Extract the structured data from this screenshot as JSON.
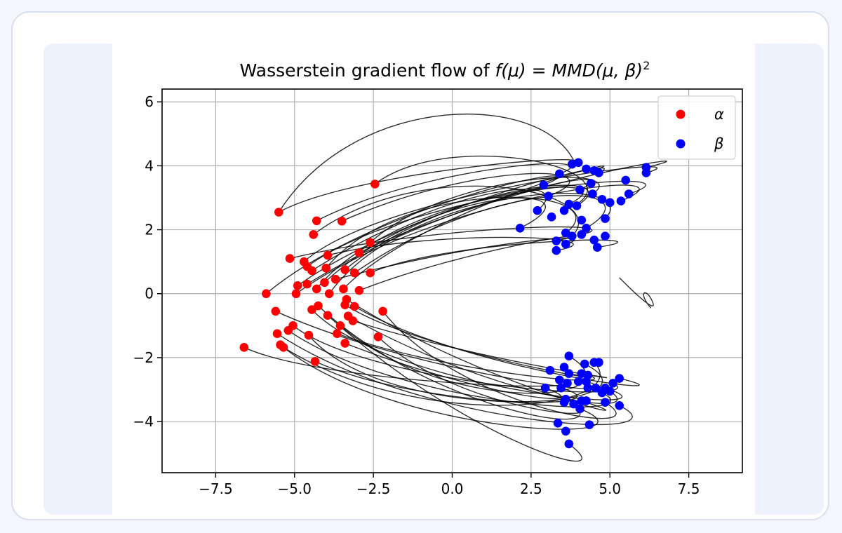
{
  "chart_data": {
    "type": "scatter",
    "title_prefix": "Wasserstein gradient flow of ",
    "title_math": "f(μ) = MMD(μ, β)",
    "title_exponent": "2",
    "xlabel": "",
    "ylabel": "",
    "xlim": [
      -9.2,
      9.2
    ],
    "ylim": [
      -5.6,
      6.4
    ],
    "grid": true,
    "legend_position": "top-right",
    "x_ticks": [
      -7.5,
      -5.0,
      -2.5,
      0.0,
      2.5,
      5.0,
      7.5
    ],
    "x_tick_labels": [
      "−7.5",
      "−5.0",
      "−2.5",
      "0.0",
      "2.5",
      "5.0",
      "7.5"
    ],
    "y_ticks": [
      -4,
      -2,
      0,
      2,
      4,
      6
    ],
    "y_tick_labels": [
      "−4",
      "−2",
      "0",
      "2",
      "4",
      "6"
    ],
    "series": [
      {
        "name": "α",
        "color": "#ff0000",
        "points": [
          [
            -5.5,
            2.55
          ],
          [
            -4.3,
            2.28
          ],
          [
            -3.5,
            2.27
          ],
          [
            -2.45,
            3.43
          ],
          [
            -4.4,
            1.85
          ],
          [
            -5.15,
            1.1
          ],
          [
            -4.7,
            1.0
          ],
          [
            -4.6,
            0.85
          ],
          [
            -4.45,
            0.72
          ],
          [
            -4.0,
            0.8
          ],
          [
            -3.95,
            1.2
          ],
          [
            -2.95,
            1.28
          ],
          [
            -2.6,
            1.6
          ],
          [
            -3.4,
            0.75
          ],
          [
            -3.1,
            0.65
          ],
          [
            -2.6,
            0.65
          ],
          [
            -4.9,
            0.25
          ],
          [
            -4.6,
            0.3
          ],
          [
            -4.3,
            0.15
          ],
          [
            -4.05,
            0.35
          ],
          [
            -3.7,
            0.45
          ],
          [
            -3.45,
            0.15
          ],
          [
            -5.9,
            0.0
          ],
          [
            -4.95,
            0.0
          ],
          [
            -3.9,
            0.0
          ],
          [
            -2.95,
            0.1
          ],
          [
            -5.6,
            -0.55
          ],
          [
            -4.45,
            -0.5
          ],
          [
            -4.25,
            -0.38
          ],
          [
            -3.95,
            -0.68
          ],
          [
            -3.4,
            -0.35
          ],
          [
            -3.1,
            -0.4
          ],
          [
            -3.3,
            -0.7
          ],
          [
            -2.2,
            -0.55
          ],
          [
            -3.55,
            -1.0
          ],
          [
            -3.15,
            -0.85
          ],
          [
            -5.05,
            -1.0
          ],
          [
            -5.2,
            -1.15
          ],
          [
            -5.55,
            -1.25
          ],
          [
            -4.55,
            -1.3
          ],
          [
            -3.65,
            -1.25
          ],
          [
            -3.4,
            -1.55
          ],
          [
            -2.35,
            -1.35
          ],
          [
            -5.45,
            -1.6
          ],
          [
            -5.35,
            -1.68
          ],
          [
            -6.6,
            -1.68
          ],
          [
            -4.35,
            -2.12
          ],
          [
            -3.35,
            -0.18
          ]
        ]
      },
      {
        "name": "β",
        "color": "#0000ff",
        "points": [
          [
            3.8,
            4.05
          ],
          [
            4.0,
            4.1
          ],
          [
            4.25,
            3.9
          ],
          [
            4.5,
            3.85
          ],
          [
            4.65,
            3.78
          ],
          [
            6.15,
            3.95
          ],
          [
            6.15,
            3.78
          ],
          [
            3.4,
            3.75
          ],
          [
            4.4,
            3.45
          ],
          [
            5.5,
            3.55
          ],
          [
            2.9,
            3.4
          ],
          [
            4.05,
            3.25
          ],
          [
            4.45,
            3.12
          ],
          [
            5.6,
            3.12
          ],
          [
            3.05,
            3.05
          ],
          [
            4.75,
            2.95
          ],
          [
            5.0,
            2.85
          ],
          [
            5.35,
            2.9
          ],
          [
            3.7,
            2.8
          ],
          [
            3.95,
            2.75
          ],
          [
            2.7,
            2.6
          ],
          [
            3.55,
            2.6
          ],
          [
            3.15,
            2.4
          ],
          [
            4.1,
            2.3
          ],
          [
            4.85,
            2.35
          ],
          [
            2.15,
            2.05
          ],
          [
            4.25,
            2.05
          ],
          [
            3.6,
            1.9
          ],
          [
            3.8,
            1.8
          ],
          [
            4.5,
            1.68
          ],
          [
            4.85,
            1.8
          ],
          [
            3.3,
            1.65
          ],
          [
            3.6,
            1.55
          ],
          [
            4.6,
            1.45
          ],
          [
            3.3,
            1.35
          ],
          [
            4.1,
            1.85
          ],
          [
            3.7,
            -1.95
          ],
          [
            4.2,
            -2.2
          ],
          [
            4.5,
            -2.15
          ],
          [
            4.65,
            -2.15
          ],
          [
            3.55,
            -2.3
          ],
          [
            3.1,
            -2.4
          ],
          [
            3.7,
            -2.5
          ],
          [
            4.1,
            -2.5
          ],
          [
            4.3,
            -2.55
          ],
          [
            3.4,
            -2.7
          ],
          [
            3.65,
            -2.8
          ],
          [
            4.0,
            -2.75
          ],
          [
            4.25,
            -2.75
          ],
          [
            5.3,
            -2.65
          ],
          [
            5.1,
            -2.8
          ],
          [
            2.95,
            -2.95
          ],
          [
            3.45,
            -2.95
          ],
          [
            4.3,
            -2.95
          ],
          [
            4.55,
            -2.95
          ],
          [
            4.85,
            -2.95
          ],
          [
            5.0,
            -3.05
          ],
          [
            4.75,
            -3.1
          ],
          [
            3.6,
            -3.3
          ],
          [
            4.1,
            -3.35
          ],
          [
            4.25,
            -3.35
          ],
          [
            3.55,
            -3.4
          ],
          [
            3.85,
            -3.45
          ],
          [
            4.85,
            -3.4
          ],
          [
            5.3,
            -3.5
          ],
          [
            4.05,
            -3.6
          ],
          [
            3.35,
            -4.05
          ],
          [
            4.35,
            -4.1
          ],
          [
            3.6,
            -4.3
          ],
          [
            3.7,
            -4.7
          ]
        ]
      }
    ],
    "legend": [
      {
        "label": "α",
        "color": "#ff0000"
      },
      {
        "label": "β",
        "color": "#0000ff"
      }
    ]
  }
}
